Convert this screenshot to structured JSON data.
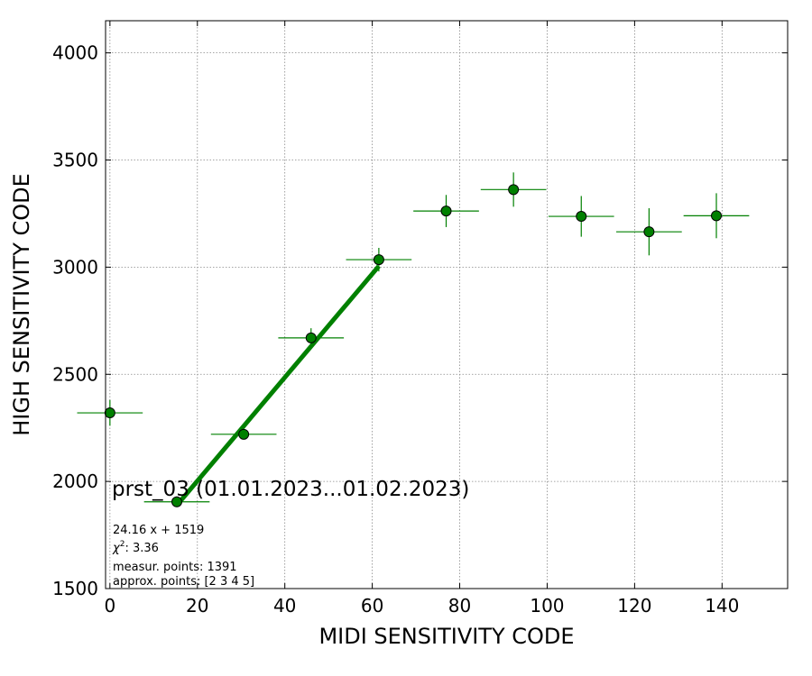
{
  "chart_data": {
    "type": "scatter",
    "xlabel": "MIDI SENSITIVITY CODE",
    "ylabel": "HIGH SENSITIVITY CODE",
    "xlim": [
      -1,
      155
    ],
    "ylim": [
      1500,
      4150
    ],
    "xticks": [
      0,
      20,
      40,
      60,
      80,
      100,
      120,
      140
    ],
    "yticks": [
      1500,
      2000,
      2500,
      3000,
      3500,
      4000
    ],
    "grid": true,
    "points": [
      {
        "x": 0,
        "y": 2320,
        "xerr": 7.5,
        "yerr": 60
      },
      {
        "x": 15.3,
        "y": 1905,
        "xerr": 7.5,
        "yerr": 25
      },
      {
        "x": 30.6,
        "y": 2220,
        "xerr": 7.5,
        "yerr": 20
      },
      {
        "x": 46.0,
        "y": 2670,
        "xerr": 7.5,
        "yerr": 45
      },
      {
        "x": 61.5,
        "y": 3035,
        "xerr": 7.5,
        "yerr": 55
      },
      {
        "x": 76.9,
        "y": 3262,
        "xerr": 7.5,
        "yerr": 75
      },
      {
        "x": 92.3,
        "y": 3362,
        "xerr": 7.5,
        "yerr": 80
      },
      {
        "x": 107.8,
        "y": 3237,
        "xerr": 7.5,
        "yerr": 95
      },
      {
        "x": 123.3,
        "y": 3165,
        "xerr": 7.5,
        "yerr": 110
      },
      {
        "x": 138.7,
        "y": 3240,
        "xerr": 7.5,
        "yerr": 105
      }
    ],
    "fit": {
      "slope": 24.16,
      "intercept": 1519,
      "x_range": [
        15.3,
        61.5
      ]
    },
    "annotation": {
      "title": "prst_03 (01.01.2023...01.02.2023)",
      "equation": "24.16 x + 1519",
      "chi2_label": "χ",
      "chi2_value": ": 3.36",
      "measur_points": "measur. points: 1391",
      "approx_points": "approx. points: [2 3 4 5]"
    },
    "colors": {
      "marker": "#008000",
      "marker_edge": "#000000",
      "fit_line": "#008000",
      "grid": "#888888"
    }
  }
}
